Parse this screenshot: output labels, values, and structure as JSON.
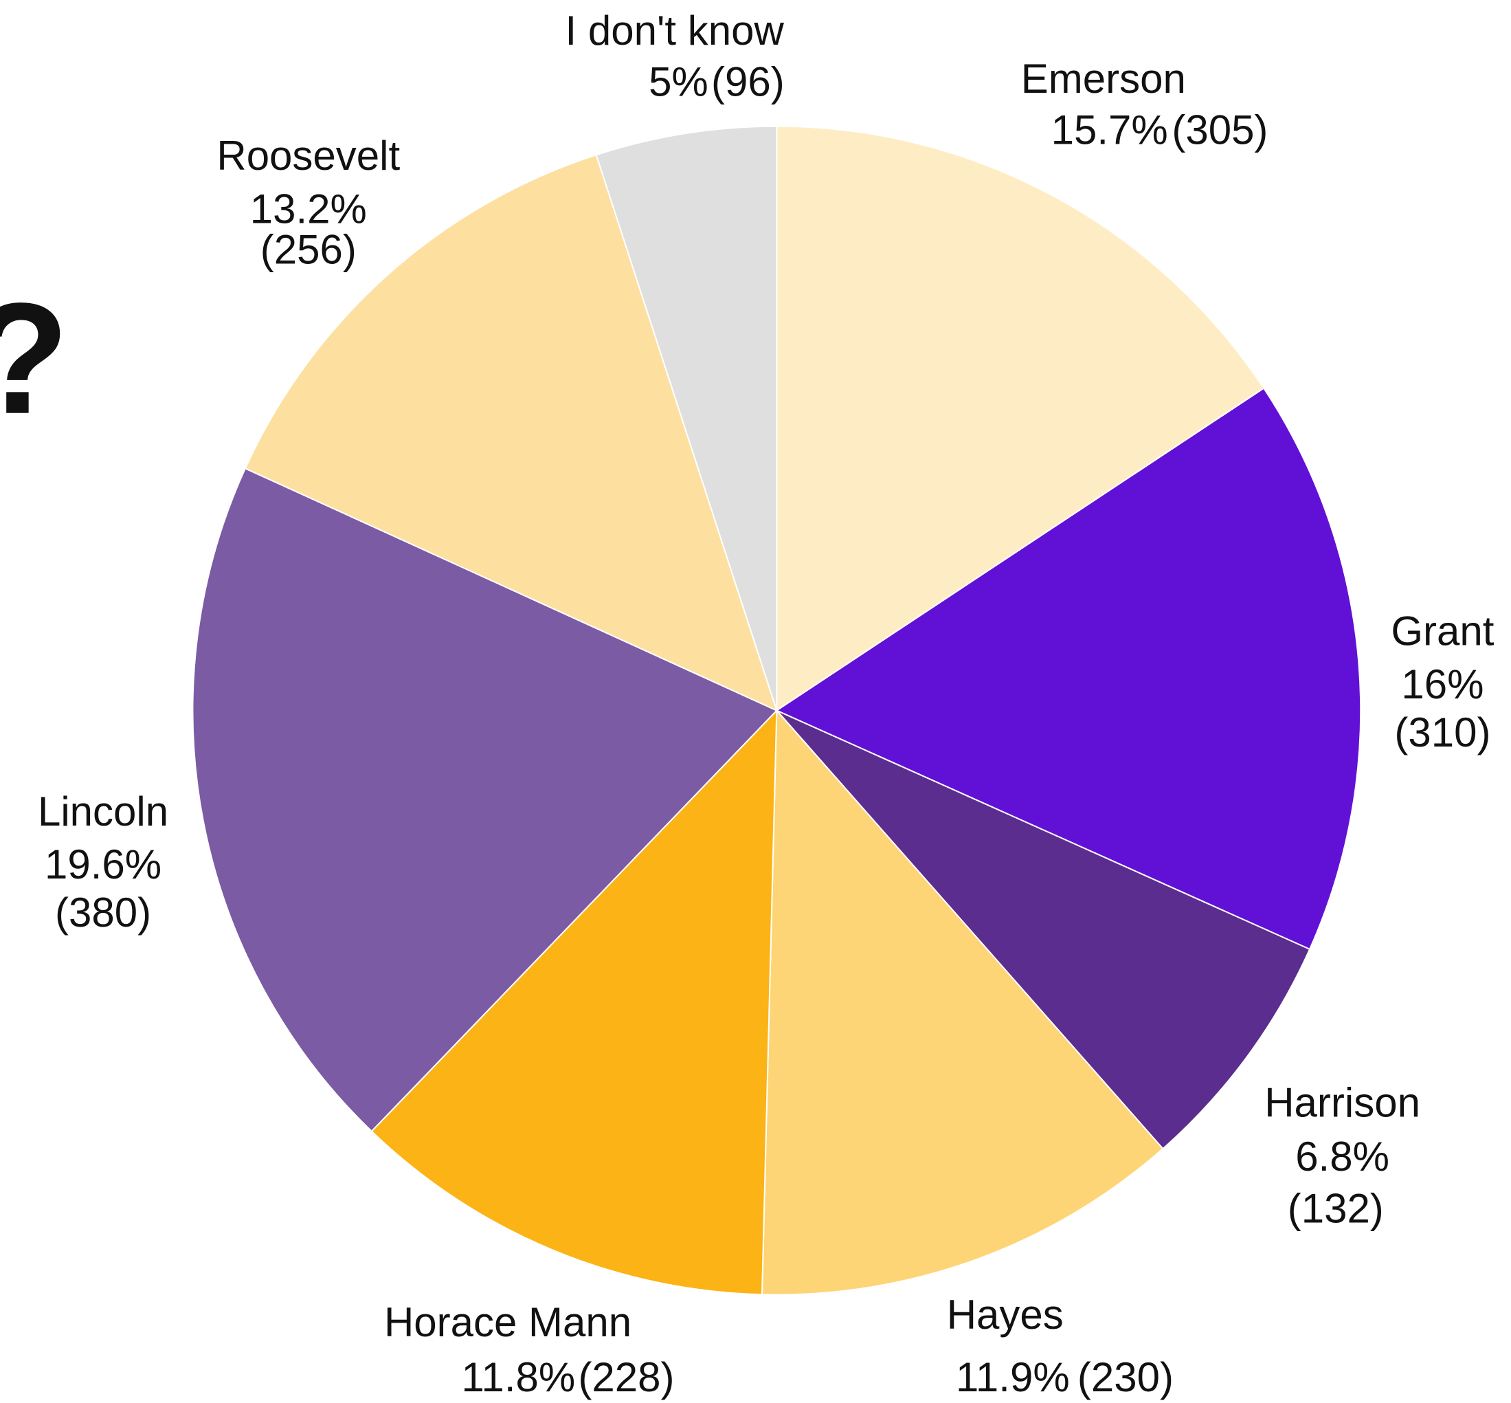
{
  "chart_data": {
    "type": "pie",
    "side_text": "?",
    "categories": [
      "Emerson",
      "Grant",
      "Harrison",
      "Hayes",
      "Horace Mann",
      "Lincoln",
      "Roosevelt",
      "I don't know"
    ],
    "values": [
      15.7,
      16,
      6.8,
      11.9,
      11.8,
      19.6,
      13.2,
      5
    ],
    "value_labels": [
      "15.7%",
      "16%",
      "6.8%",
      "11.9%",
      "11.8%",
      "19.6%",
      "13.2%",
      "5%"
    ],
    "counts": [
      305,
      310,
      132,
      230,
      228,
      380,
      256,
      96
    ],
    "count_labels": [
      "(305)",
      "(310)",
      "(132)",
      "(230)",
      "(228)",
      "(380)",
      "(256)",
      "(96)"
    ],
    "colors": [
      "#feedc4",
      "#6111d6",
      "#5b2d8e",
      "#fdd576",
      "#fbb316",
      "#7a5ba4",
      "#fddfa0",
      "#e0dfdf"
    ]
  }
}
